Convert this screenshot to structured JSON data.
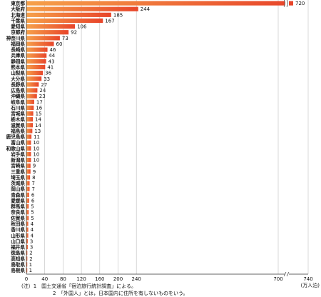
{
  "chart_data": {
    "type": "bar",
    "orientation": "horizontal",
    "categories": [
      "東京都",
      "大阪府",
      "北海道",
      "千葉県",
      "愛知県",
      "京都府",
      "神奈川県",
      "福岡県",
      "長崎県",
      "兵庫県",
      "静岡県",
      "熊本県",
      "山梨県",
      "大分県",
      "長野県",
      "広島県",
      "沖縄県",
      "岐阜県",
      "石川県",
      "宮城県",
      "栃木県",
      "滋賀県",
      "福島県",
      "鹿児島県",
      "富山県",
      "和歌山県",
      "岩手県",
      "新潟県",
      "宮崎県",
      "三重県",
      "埼玉県",
      "茨城県",
      "岡山県",
      "青森県",
      "愛媛県",
      "群馬県",
      "奈良県",
      "佐賀県",
      "秋田県",
      "香川県",
      "山形県",
      "山口県",
      "福井県",
      "徳島県",
      "高知県",
      "鳥取県",
      "島根県"
    ],
    "values": [
      720,
      244,
      185,
      167,
      106,
      92,
      73,
      60,
      46,
      44,
      43,
      41,
      36,
      33,
      27,
      24,
      23,
      17,
      16,
      15,
      14,
      14,
      13,
      11,
      10,
      10,
      10,
      10,
      9,
      9,
      8,
      7,
      7,
      6,
      6,
      5,
      5,
      5,
      4,
      4,
      4,
      3,
      3,
      2,
      2,
      1,
      1
    ],
    "x_ticks": [
      "0",
      "40",
      "80",
      "120",
      "160",
      "200",
      "240",
      "700",
      "740"
    ],
    "xlabel": "(万人泊)",
    "axis_break": true,
    "bar_color": "#e8452a",
    "bar_highlight": "#f6a14a",
    "notes": [
      "(注）1　国土交通省「宿泊旅行統計調査」による。",
      "2　「外国人」とは，日本国内に住所を有しないものをいう。"
    ]
  }
}
